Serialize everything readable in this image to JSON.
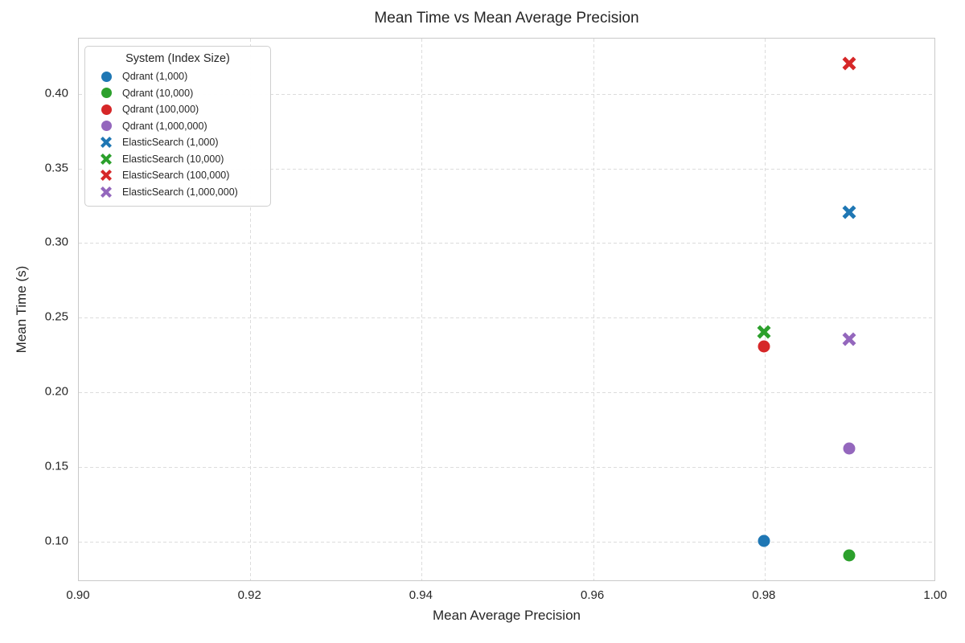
{
  "chart_data": {
    "type": "scatter",
    "title": "Mean Time vs Mean Average Precision",
    "xlabel": "Mean Average Precision",
    "ylabel": "Mean Time (s)",
    "xlim": [
      0.9,
      1.0
    ],
    "ylim": [
      0.073,
      0.437
    ],
    "xticks": [
      0.9,
      0.92,
      0.94,
      0.96,
      0.98,
      1.0
    ],
    "xtick_labels": [
      "0.90",
      "0.92",
      "0.94",
      "0.96",
      "0.98",
      "1.00"
    ],
    "yticks": [
      0.1,
      0.15,
      0.2,
      0.25,
      0.3,
      0.35,
      0.4
    ],
    "ytick_labels": [
      "0.10",
      "0.15",
      "0.20",
      "0.25",
      "0.30",
      "0.35",
      "0.40"
    ],
    "grid": "dashed",
    "legend": {
      "title": "System (Index Size)",
      "position": "upper-left"
    },
    "series": [
      {
        "name": "Qdrant (1,000)",
        "marker": "circle",
        "color": "#1f77b4",
        "points": [
          [
            0.98,
            0.1
          ]
        ]
      },
      {
        "name": "Qdrant (10,000)",
        "marker": "circle",
        "color": "#2ca02c",
        "points": [
          [
            0.99,
            0.09
          ]
        ]
      },
      {
        "name": "Qdrant (100,000)",
        "marker": "circle",
        "color": "#d62728",
        "points": [
          [
            0.98,
            0.23
          ]
        ]
      },
      {
        "name": "Qdrant (1,000,000)",
        "marker": "circle",
        "color": "#9467bd",
        "points": [
          [
            0.99,
            0.162
          ]
        ]
      },
      {
        "name": "ElasticSearch (1,000)",
        "marker": "x",
        "color": "#1f77b4",
        "points": [
          [
            0.99,
            0.32
          ]
        ]
      },
      {
        "name": "ElasticSearch (10,000)",
        "marker": "x",
        "color": "#2ca02c",
        "points": [
          [
            0.98,
            0.24
          ]
        ]
      },
      {
        "name": "ElasticSearch (100,000)",
        "marker": "x",
        "color": "#d62728",
        "points": [
          [
            0.99,
            0.42
          ]
        ]
      },
      {
        "name": "ElasticSearch (1,000,000)",
        "marker": "x",
        "color": "#9467bd",
        "points": [
          [
            0.99,
            0.235
          ]
        ]
      }
    ]
  }
}
